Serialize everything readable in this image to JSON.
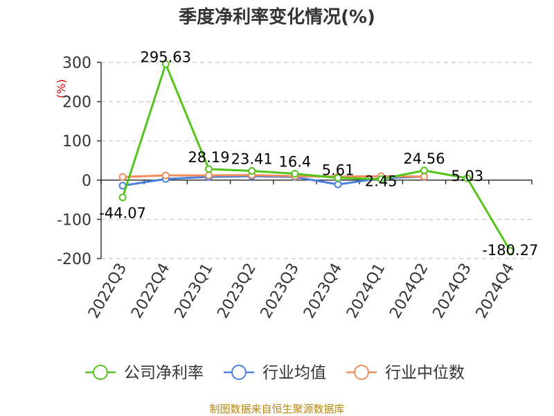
{
  "chart_data": {
    "type": "line",
    "title": "季度净利率变化情况(%)",
    "ylabel": "(%)",
    "xlabel": "",
    "categories": [
      "2022Q3",
      "2022Q4",
      "2023Q1",
      "2023Q2",
      "2023Q3",
      "2023Q4",
      "2024Q1",
      "2024Q2",
      "2024Q3",
      "2024Q4"
    ],
    "ylim": [
      -200,
      300
    ],
    "yticks": [
      300,
      200,
      100,
      0,
      -100,
      -200
    ],
    "grid": true,
    "legend_position": "bottom",
    "series": [
      {
        "name": "公司净利率",
        "color": "#52c41a",
        "values": [
          -44.07,
          295.63,
          28.19,
          23.41,
          16.4,
          5.61,
          2.45,
          24.56,
          5.03,
          -180.27
        ],
        "labels": [
          "-44.07",
          "295.63",
          "28.19",
          "23.41",
          "16.4",
          "5.61",
          "2.45",
          "24.56",
          "5.03",
          "-180.27"
        ]
      },
      {
        "name": "行业均值",
        "color": "#4a7fe0",
        "values": [
          -14,
          3,
          8,
          10,
          8,
          -11,
          5,
          9,
          null,
          null
        ]
      },
      {
        "name": "行业中位数",
        "color": "#f28c5a",
        "values": [
          8,
          12,
          12,
          13,
          10,
          9,
          10,
          9,
          null,
          null
        ]
      }
    ]
  },
  "source": "制图数据来自恒生聚源数据库"
}
